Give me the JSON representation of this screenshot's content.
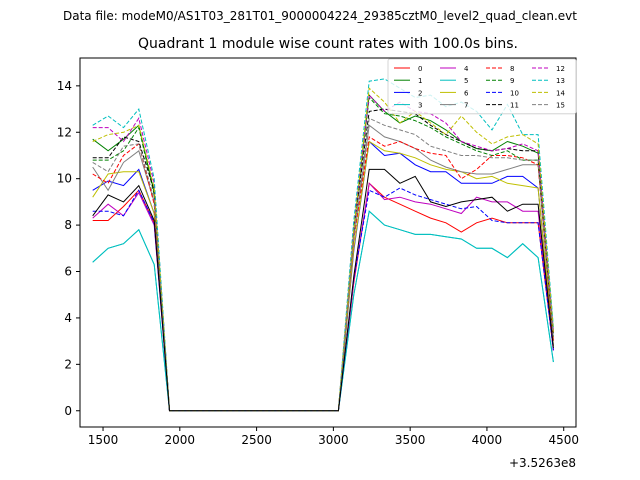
{
  "suptitle": "Data file: modeM0/AS1T03_281T01_9000004224_29385cztM0_level2_quad_clean.evt",
  "chart_data": {
    "type": "line",
    "title": "Quadrant 1 module wise count rates with 100.0s bins.",
    "xlabel": "",
    "ylabel": "",
    "x_offset_label": "+3.5263e8",
    "xlim": [
      1350,
      4580
    ],
    "ylim": [
      -0.7,
      15.2
    ],
    "xticks": [
      1500,
      2000,
      2500,
      3000,
      3500,
      4000,
      4500
    ],
    "yticks": [
      0,
      2,
      4,
      6,
      8,
      10,
      12,
      14
    ],
    "xtick_labels": [
      "1500",
      "2000",
      "2500",
      "3000",
      "3500",
      "4000",
      "4500"
    ],
    "ytick_labels": [
      "0",
      "2",
      "4",
      "6",
      "8",
      "10",
      "12",
      "14"
    ],
    "legend_position": "top-right",
    "x": [
      1433,
      1533,
      1633,
      1733,
      1833,
      1933,
      2033,
      2133,
      2233,
      2333,
      2433,
      2533,
      2633,
      2733,
      2833,
      2933,
      3033,
      3133,
      3233,
      3333,
      3433,
      3533,
      3633,
      3733,
      3833,
      3933,
      4033,
      4133,
      4233,
      4333,
      4433
    ],
    "series": [
      {
        "name": "0",
        "color": "#ff0000",
        "dash": "solid",
        "values": [
          8.2,
          8.2,
          8.8,
          9.5,
          8.1,
          0,
          0,
          0,
          0,
          0,
          0,
          0,
          0,
          0,
          0,
          0,
          0,
          5.5,
          9.8,
          9.2,
          8.9,
          8.6,
          8.3,
          8.1,
          7.7,
          8.1,
          8.3,
          8.1,
          8.1,
          8.1,
          2.6
        ]
      },
      {
        "name": "1",
        "color": "#008000",
        "dash": "solid",
        "values": [
          11.7,
          11.2,
          11.7,
          12.3,
          9.4,
          0,
          0,
          0,
          0,
          0,
          0,
          0,
          0,
          0,
          0,
          0,
          0,
          7.8,
          13.6,
          12.9,
          12.4,
          12.7,
          12.5,
          12.1,
          11.6,
          11.3,
          11.2,
          11.6,
          11.4,
          11.1,
          3.4
        ]
      },
      {
        "name": "2",
        "color": "#0000ff",
        "dash": "solid",
        "values": [
          9.5,
          9.9,
          9.7,
          10.4,
          8.5,
          0,
          0,
          0,
          0,
          0,
          0,
          0,
          0,
          0,
          0,
          0,
          0,
          6.9,
          11.6,
          11.0,
          11.1,
          10.6,
          10.3,
          10.3,
          9.8,
          9.8,
          9.8,
          10.1,
          10.1,
          9.6,
          2.8
        ]
      },
      {
        "name": "3",
        "color": "#00bfbf",
        "dash": "solid",
        "values": [
          6.4,
          7.0,
          7.2,
          7.8,
          6.3,
          0,
          0,
          0,
          0,
          0,
          0,
          0,
          0,
          0,
          0,
          0,
          0,
          5.0,
          8.6,
          8.0,
          7.8,
          7.6,
          7.6,
          7.5,
          7.4,
          7.0,
          7.0,
          6.6,
          7.2,
          6.6,
          2.1
        ]
      },
      {
        "name": "4",
        "color": "#bf00bf",
        "dash": "solid",
        "values": [
          8.3,
          8.9,
          8.4,
          9.4,
          8.0,
          0,
          0,
          0,
          0,
          0,
          0,
          0,
          0,
          0,
          0,
          0,
          0,
          5.6,
          9.8,
          9.1,
          9.2,
          9.0,
          8.9,
          8.7,
          8.5,
          9.2,
          9.0,
          9.0,
          8.6,
          8.6,
          2.6
        ]
      },
      {
        "name": "5",
        "color": "#00bfbf",
        "dash": "solid",
        "values": [
          6.4,
          7.0,
          7.2,
          7.8,
          6.3,
          0,
          0,
          0,
          0,
          0,
          0,
          0,
          0,
          0,
          0,
          0,
          0,
          5.0,
          8.6,
          8.0,
          7.8,
          7.6,
          7.6,
          7.5,
          7.4,
          7.0,
          7.0,
          6.6,
          7.2,
          6.6,
          2.1
        ]
      },
      {
        "name": "6",
        "color": "#bfbf00",
        "dash": "solid",
        "values": [
          9.2,
          10.2,
          10.3,
          10.3,
          8.5,
          0,
          0,
          0,
          0,
          0,
          0,
          0,
          0,
          0,
          0,
          0,
          0,
          7.0,
          11.6,
          11.2,
          11.1,
          10.9,
          10.6,
          10.4,
          10.3,
          10.0,
          10.1,
          9.8,
          9.7,
          9.6,
          2.8
        ]
      },
      {
        "name": "7",
        "color": "#808080",
        "dash": "solid",
        "values": [
          10.5,
          9.5,
          10.7,
          11.2,
          9.0,
          0,
          0,
          0,
          0,
          0,
          0,
          0,
          0,
          0,
          0,
          0,
          0,
          7.4,
          12.3,
          11.8,
          11.6,
          11.3,
          10.8,
          10.5,
          10.3,
          10.2,
          10.2,
          10.4,
          10.6,
          10.6,
          3.0
        ]
      },
      {
        "name": "8",
        "color": "#ff0000",
        "dash": "dashed",
        "values": [
          10.2,
          9.8,
          11.0,
          11.5,
          8.9,
          0,
          0,
          0,
          0,
          0,
          0,
          0,
          0,
          0,
          0,
          0,
          0,
          7.4,
          11.8,
          11.4,
          11.6,
          11.3,
          11.1,
          11.0,
          10.0,
          10.4,
          11.0,
          11.0,
          10.9,
          10.6,
          3.0
        ]
      },
      {
        "name": "9",
        "color": "#008000",
        "dash": "dashed",
        "values": [
          10.8,
          10.8,
          11.2,
          12.2,
          9.3,
          0,
          0,
          0,
          0,
          0,
          0,
          0,
          0,
          0,
          0,
          0,
          0,
          7.9,
          13.5,
          12.8,
          12.7,
          12.5,
          12.2,
          11.8,
          11.5,
          11.2,
          11.0,
          11.2,
          10.8,
          10.8,
          3.2
        ]
      },
      {
        "name": "10",
        "color": "#0000ff",
        "dash": "dashed",
        "values": [
          8.6,
          8.6,
          8.4,
          9.5,
          8.1,
          0,
          0,
          0,
          0,
          0,
          0,
          0,
          0,
          0,
          0,
          0,
          0,
          5.7,
          9.5,
          9.2,
          9.6,
          9.3,
          9.1,
          8.9,
          8.7,
          8.8,
          8.2,
          8.1,
          8.1,
          8.1,
          2.6
        ]
      },
      {
        "name": "11",
        "color": "#000000",
        "dash": "dashed",
        "values": [
          10.9,
          10.9,
          11.8,
          11.6,
          9.5,
          0,
          0,
          0,
          0,
          0,
          0,
          0,
          0,
          0,
          0,
          0,
          0,
          7.8,
          12.9,
          13.0,
          12.9,
          12.8,
          12.3,
          11.9,
          11.6,
          11.3,
          11.2,
          11.3,
          11.2,
          11.2,
          3.3
        ]
      },
      {
        "name": "12",
        "color": "#bf00bf",
        "dash": "dashed",
        "values": [
          12.2,
          12.2,
          11.6,
          12.6,
          9.8,
          0,
          0,
          0,
          0,
          0,
          0,
          0,
          0,
          0,
          0,
          0,
          0,
          8.0,
          13.6,
          12.9,
          13.3,
          12.9,
          12.8,
          12.4,
          11.6,
          11.4,
          11.2,
          11.3,
          11.5,
          11.2,
          3.4
        ]
      },
      {
        "name": "13",
        "color": "#00bfbf",
        "dash": "dashed",
        "values": [
          12.3,
          12.7,
          12.2,
          13.0,
          10.0,
          0,
          0,
          0,
          0,
          0,
          0,
          0,
          0,
          0,
          0,
          0,
          0,
          8.2,
          14.2,
          14.3,
          13.9,
          13.5,
          13.6,
          13.1,
          13.3,
          12.9,
          12.1,
          13.2,
          11.9,
          11.9,
          3.6
        ]
      },
      {
        "name": "14",
        "color": "#bfbf00",
        "dash": "dashed",
        "values": [
          11.6,
          11.9,
          12.0,
          12.3,
          9.6,
          0,
          0,
          0,
          0,
          0,
          0,
          0,
          0,
          0,
          0,
          0,
          0,
          7.8,
          13.9,
          13.3,
          12.4,
          12.9,
          12.4,
          11.9,
          12.7,
          12.0,
          11.5,
          11.8,
          11.9,
          11.5,
          3.4
        ]
      },
      {
        "name": "15",
        "color": "#808080",
        "dash": "dashed",
        "values": [
          10.7,
          10.3,
          11.4,
          11.5,
          9.1,
          0,
          0,
          0,
          0,
          0,
          0,
          0,
          0,
          0,
          0,
          0,
          0,
          7.5,
          12.6,
          12.3,
          12.1,
          11.9,
          11.4,
          11.2,
          11.0,
          11.0,
          10.9,
          10.9,
          10.8,
          10.8,
          3.1
        ]
      },
      {
        "name": "",
        "color": "#000000",
        "dash": "solid",
        "values": [
          8.4,
          9.3,
          9.0,
          9.7,
          8.2,
          0,
          0,
          0,
          0,
          0,
          0,
          0,
          0,
          0,
          0,
          0,
          0,
          5.8,
          10.4,
          10.4,
          9.8,
          10.1,
          9.0,
          8.8,
          9.0,
          9.1,
          9.2,
          8.6,
          8.9,
          8.9,
          2.7
        ]
      }
    ]
  }
}
